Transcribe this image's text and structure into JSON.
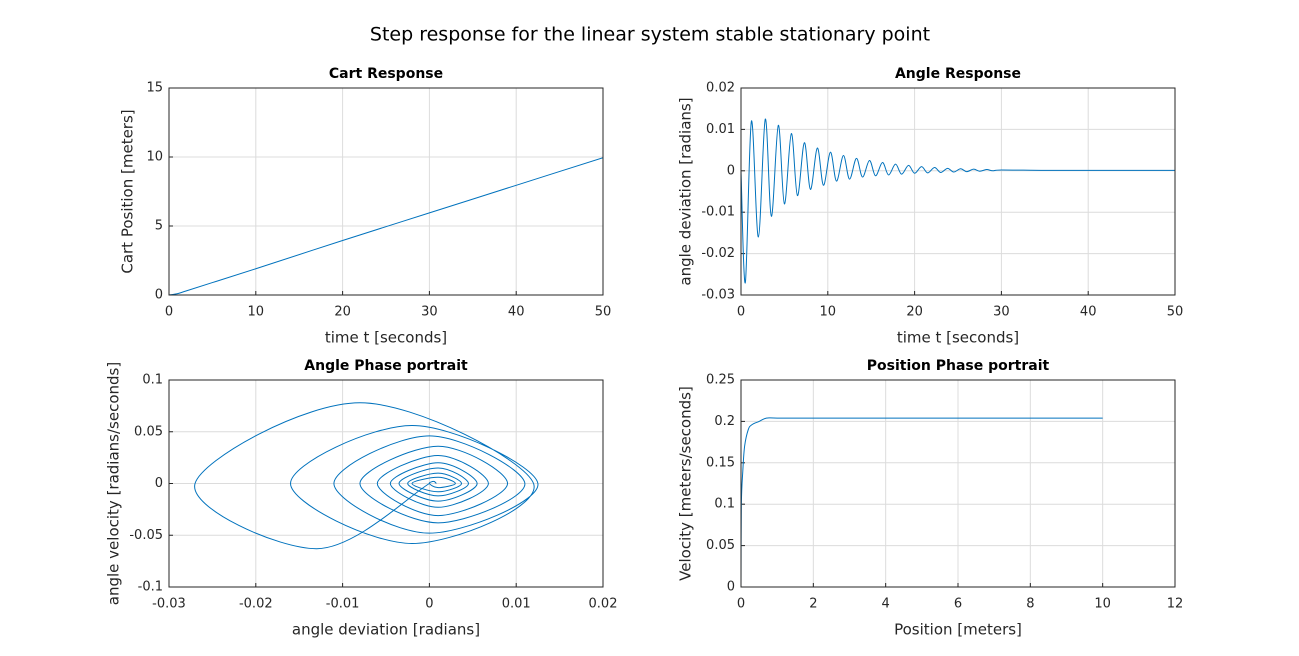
{
  "title": "Step response for the linear system stable stationary point",
  "chart_data": [
    {
      "type": "line",
      "title": "Cart Response",
      "xlabel": "time t [seconds]",
      "ylabel": "Cart Position [meters]",
      "x": [
        0,
        1,
        2,
        5,
        10,
        20,
        30,
        40,
        50
      ],
      "values": [
        0,
        0.1,
        0.3,
        0.9,
        1.9,
        3.95,
        5.95,
        7.95,
        9.95
      ],
      "color": "#0072bd",
      "xlim": [
        0,
        50
      ],
      "ylim": [
        0,
        15
      ],
      "xticks": [
        0,
        10,
        20,
        30,
        40,
        50
      ],
      "yticks": [
        0,
        5,
        10,
        15
      ],
      "grid": true
    },
    {
      "type": "line",
      "title": "Angle Response",
      "xlabel": "time t [seconds]",
      "ylabel": "angle deviation [radians]",
      "x": [
        0,
        0.5,
        1.2,
        2.0,
        2.8,
        3.5,
        4.3,
        5.0,
        5.8,
        6.5,
        7.3,
        8.0,
        8.8,
        9.5,
        10.3,
        11,
        11.8,
        12.5,
        13.3,
        14,
        14.8,
        15.5,
        16.3,
        17,
        17.8,
        18.5,
        19.3,
        20,
        20.8,
        21.5,
        22.3,
        23,
        23.8,
        24.5,
        25.3,
        26,
        26.8,
        27.5,
        28.3,
        29,
        30,
        35,
        40,
        50
      ],
      "values": [
        0,
        -0.027,
        0.012,
        -0.016,
        0.0125,
        -0.011,
        0.011,
        -0.008,
        0.009,
        -0.006,
        0.0068,
        -0.0045,
        0.0055,
        -0.0035,
        0.0045,
        -0.0025,
        0.0037,
        -0.002,
        0.003,
        -0.0015,
        0.0025,
        -0.0012,
        0.002,
        -0.001,
        0.0016,
        -0.0008,
        0.0013,
        -0.0006,
        0.001,
        -0.0005,
        0.0008,
        -0.0004,
        0.0006,
        -0.0003,
        0.0005,
        -0.0002,
        0.0004,
        -0.0001,
        0.0003,
        0,
        0.0002,
        0.0001,
        0.0001,
        0.0001
      ],
      "color": "#0072bd",
      "xlim": [
        0,
        50
      ],
      "ylim": [
        -0.03,
        0.02
      ],
      "xticks": [
        0,
        10,
        20,
        30,
        40,
        50
      ],
      "yticks": [
        -0.03,
        -0.02,
        -0.01,
        0,
        0.01,
        0.02
      ],
      "grid": true
    },
    {
      "type": "line",
      "title": "Angle Phase portrait",
      "xlabel": "angle deviation [radians]",
      "ylabel": "angle velocity [radians/seconds]",
      "x": [
        0,
        -0.013,
        -0.027,
        -0.008,
        0.012,
        -0.002,
        -0.016,
        -0.002,
        0.0125,
        0,
        -0.011,
        0,
        0.011,
        0.001,
        -0.008,
        0.001,
        0.009,
        0.001,
        -0.006,
        0.001,
        0.0068,
        0.001,
        -0.0045,
        0.001,
        0.0055,
        0.001,
        -0.0035,
        0.001,
        0.0045,
        0.001,
        -0.0025,
        0.001,
        0.0037,
        0.001,
        -0.002,
        0.001,
        0.003,
        0.001,
        0,
        0.0005,
        0.0008
      ],
      "values": [
        0,
        -0.063,
        0,
        0.078,
        0,
        -0.058,
        0,
        0.056,
        0,
        -0.048,
        0,
        0.046,
        0,
        -0.038,
        0,
        0.036,
        0,
        -0.031,
        0,
        0.027,
        0,
        -0.023,
        0,
        0.02,
        0,
        -0.017,
        0,
        0.015,
        0,
        -0.012,
        0,
        0.01,
        0,
        -0.008,
        0,
        0.006,
        0,
        -0.004,
        0,
        0.002,
        0
      ],
      "color": "#0072bd",
      "xlim": [
        -0.03,
        0.02
      ],
      "ylim": [
        -0.1,
        0.1
      ],
      "xticks": [
        -0.03,
        -0.02,
        -0.01,
        0,
        0.01,
        0.02
      ],
      "yticks": [
        -0.1,
        -0.05,
        0,
        0.05,
        0.1
      ],
      "grid": true
    },
    {
      "type": "line",
      "title": "Position Phase portrait",
      "xlabel": "Position [meters]",
      "ylabel": "Velocity [meters/seconds]",
      "x": [
        0,
        0.01,
        0.05,
        0.1,
        0.2,
        0.3,
        0.5,
        0.7,
        1,
        2,
        4,
        6,
        8,
        10
      ],
      "values": [
        0,
        0.1,
        0.14,
        0.17,
        0.19,
        0.196,
        0.2,
        0.204,
        0.204,
        0.204,
        0.204,
        0.204,
        0.204,
        0.204
      ],
      "color": "#0072bd",
      "xlim": [
        0,
        12
      ],
      "ylim": [
        0,
        0.25
      ],
      "xticks": [
        0,
        2,
        4,
        6,
        8,
        10,
        12
      ],
      "yticks": [
        0,
        0.05,
        0.1,
        0.15,
        0.2,
        0.25
      ],
      "grid": true
    }
  ]
}
